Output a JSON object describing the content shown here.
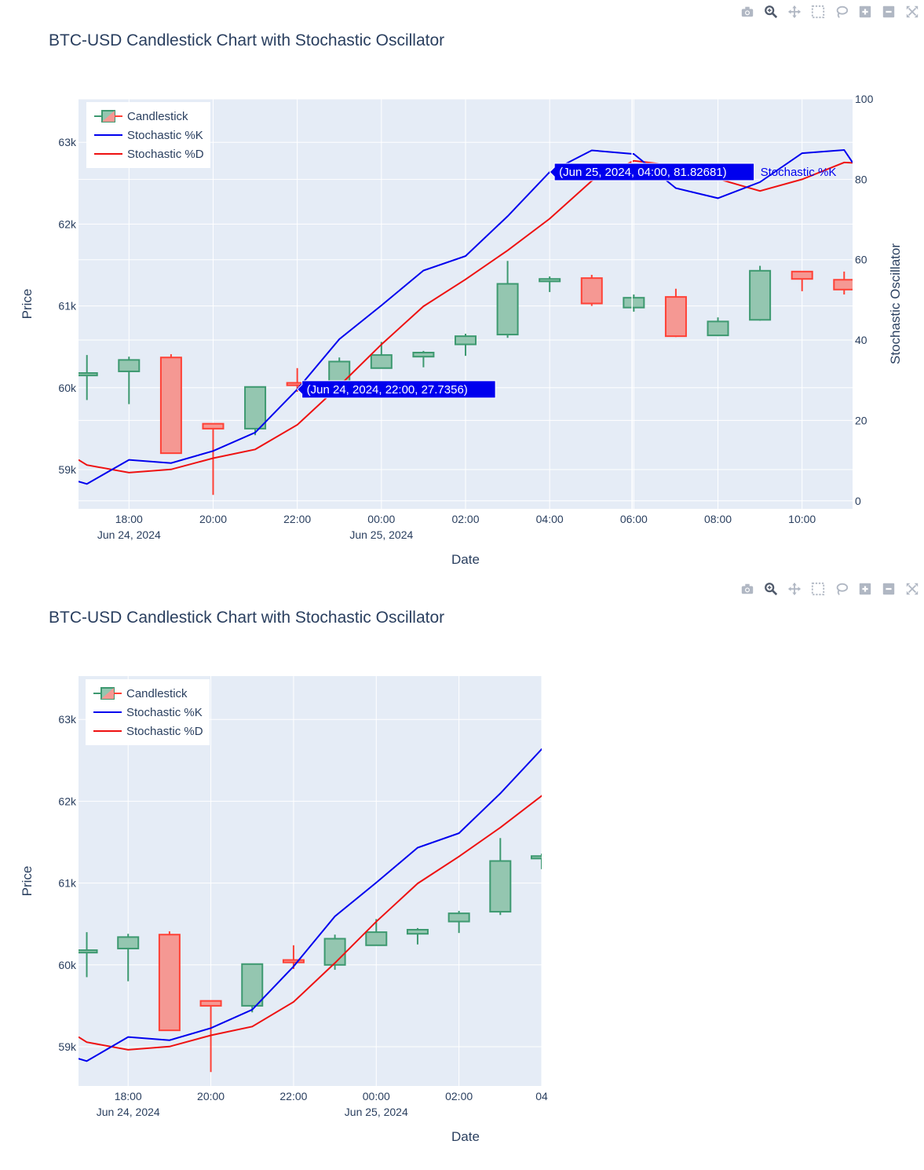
{
  "modebar_icons": [
    "camera-icon",
    "zoom-icon",
    "pan-icon",
    "box-select-icon",
    "lasso-icon",
    "zoom-in-icon",
    "zoom-out-icon",
    "autoscale-icon"
  ],
  "colors": {
    "increasing": "#3d9970",
    "increasing_fill": "#94c6b0",
    "decreasing": "#ff4136",
    "decreasing_fill": "#f59893",
    "k_line": "#0000ee",
    "d_line": "#ee1111",
    "plot_bg": "#e5ecf6",
    "grid": "#ffffff",
    "text": "#2a3f5f"
  },
  "chart_data": [
    {
      "type": "candlestick",
      "title": "BTC-USD Candlestick Chart with Stochastic Oscillator",
      "xlabel": "Date",
      "ylabel": "Price",
      "y2label": "Stochastic Oscillator",
      "legend": [
        "Candlestick",
        "Stochastic %K",
        "Stochastic %D"
      ],
      "legend_position": "top-left",
      "x_range": [
        "2024-06-24 16:48",
        "2024-06-25 11:12"
      ],
      "x_ticks": [
        {
          "t": "2024-06-24 18:00",
          "label": "18:00",
          "date_label": "Jun 24, 2024"
        },
        {
          "t": "2024-06-24 20:00",
          "label": "20:00",
          "date_label": ""
        },
        {
          "t": "2024-06-24 22:00",
          "label": "22:00",
          "date_label": ""
        },
        {
          "t": "2024-06-25 00:00",
          "label": "00:00",
          "date_label": "Jun 25, 2024"
        },
        {
          "t": "2024-06-25 02:00",
          "label": "02:00",
          "date_label": ""
        },
        {
          "t": "2024-06-25 04:00",
          "label": "04:00",
          "date_label": ""
        },
        {
          "t": "2024-06-25 06:00",
          "label": "06:00",
          "date_label": ""
        },
        {
          "t": "2024-06-25 08:00",
          "label": "08:00",
          "date_label": ""
        },
        {
          "t": "2024-06-25 10:00",
          "label": "10:00",
          "date_label": ""
        }
      ],
      "y_range": [
        58520,
        63530
      ],
      "y_ticks": [
        {
          "v": 59000,
          "label": "59k"
        },
        {
          "v": 60000,
          "label": "60k"
        },
        {
          "v": 61000,
          "label": "61k"
        },
        {
          "v": 62000,
          "label": "62k"
        },
        {
          "v": 63000,
          "label": "63k"
        }
      ],
      "y2_range": [
        -2,
        100
      ],
      "y2_ticks": [
        {
          "v": 0,
          "label": "0"
        },
        {
          "v": 20,
          "label": "20"
        },
        {
          "v": 40,
          "label": "40"
        },
        {
          "v": 60,
          "label": "60"
        },
        {
          "v": 80,
          "label": "80"
        },
        {
          "v": 100,
          "label": "100"
        }
      ],
      "candles": [
        {
          "t": "2024-06-24 17:00",
          "open": 60150,
          "high": 60400,
          "low": 59850,
          "close": 60180
        },
        {
          "t": "2024-06-24 18:00",
          "open": 60200,
          "high": 60380,
          "low": 59800,
          "close": 60340
        },
        {
          "t": "2024-06-24 19:00",
          "open": 60370,
          "high": 60410,
          "low": 59200,
          "close": 59200
        },
        {
          "t": "2024-06-24 20:00",
          "open": 59560,
          "high": 59560,
          "low": 58690,
          "close": 59500
        },
        {
          "t": "2024-06-24 21:00",
          "open": 59500,
          "high": 60010,
          "low": 59420,
          "close": 60010
        },
        {
          "t": "2024-06-24 22:00",
          "open": 60060,
          "high": 60240,
          "low": 59950,
          "close": 60030
        },
        {
          "t": "2024-06-24 23:00",
          "open": 60000,
          "high": 60370,
          "low": 59940,
          "close": 60320
        },
        {
          "t": "2024-06-25 00:00",
          "open": 60240,
          "high": 60560,
          "low": 60240,
          "close": 60400
        },
        {
          "t": "2024-06-25 01:00",
          "open": 60380,
          "high": 60450,
          "low": 60250,
          "close": 60430
        },
        {
          "t": "2024-06-25 02:00",
          "open": 60530,
          "high": 60660,
          "low": 60390,
          "close": 60630
        },
        {
          "t": "2024-06-25 03:00",
          "open": 60650,
          "high": 61550,
          "low": 60610,
          "close": 61270
        },
        {
          "t": "2024-06-25 04:00",
          "open": 61300,
          "high": 61360,
          "low": 61170,
          "close": 61330
        },
        {
          "t": "2024-06-25 05:00",
          "open": 61340,
          "high": 61380,
          "low": 61000,
          "close": 61030
        },
        {
          "t": "2024-06-25 06:00",
          "open": 60980,
          "high": 61140,
          "low": 60930,
          "close": 61100
        },
        {
          "t": "2024-06-25 07:00",
          "open": 61110,
          "high": 61210,
          "low": 60620,
          "close": 60630
        },
        {
          "t": "2024-06-25 08:00",
          "open": 60640,
          "high": 60860,
          "low": 60630,
          "close": 60810
        },
        {
          "t": "2024-06-25 09:00",
          "open": 60830,
          "high": 61490,
          "low": 60820,
          "close": 61430
        },
        {
          "t": "2024-06-25 10:00",
          "open": 61420,
          "high": 61420,
          "low": 61180,
          "close": 61330
        },
        {
          "t": "2024-06-25 11:00",
          "open": 61320,
          "high": 61420,
          "low": 61140,
          "close": 61200
        }
      ],
      "stoch_k": {
        "t": [
          "2024-06-24 16:48",
          "2024-06-24 17:00",
          "2024-06-24 18:00",
          "2024-06-24 19:00",
          "2024-06-24 20:00",
          "2024-06-24 21:00",
          "2024-06-24 22:00",
          "2024-06-24 23:00",
          "2024-06-25 00:00",
          "2024-06-25 01:00",
          "2024-06-25 02:00",
          "2024-06-25 03:00",
          "2024-06-25 04:00",
          "2024-06-25 05:00",
          "2024-06-25 06:00",
          "2024-06-25 07:00",
          "2024-06-25 08:00",
          "2024-06-25 09:00",
          "2024-06-25 10:00",
          "2024-06-25 11:00",
          "2024-06-25 11:12"
        ],
        "v": [
          4.8,
          4.2,
          10.2,
          9.4,
          12.4,
          17.0,
          27.7356,
          40.2,
          48.6,
          57.3,
          60.9,
          70.8,
          81.82681,
          87.2,
          86.3,
          77.8,
          75.3,
          79.3,
          86.5,
          87.3,
          84.2
        ]
      },
      "stoch_d": {
        "t": [
          "2024-06-24 16:48",
          "2024-06-24 17:00",
          "2024-06-24 18:00",
          "2024-06-24 19:00",
          "2024-06-24 20:00",
          "2024-06-24 21:00",
          "2024-06-24 22:00",
          "2024-06-24 23:00",
          "2024-06-25 00:00",
          "2024-06-25 01:00",
          "2024-06-25 02:00",
          "2024-06-25 03:00",
          "2024-06-25 04:00",
          "2024-06-25 05:00",
          "2024-06-25 06:00",
          "2024-06-25 07:00",
          "2024-06-25 08:00",
          "2024-06-25 09:00",
          "2024-06-25 10:00",
          "2024-06-25 11:00",
          "2024-06-25 11:12"
        ],
        "v": [
          10.2,
          8.9,
          7.0,
          7.8,
          10.6,
          12.8,
          18.9,
          28.6,
          38.9,
          48.4,
          55.1,
          62.3,
          70.2,
          79.6,
          84.6,
          83.4,
          80.1,
          77.1,
          80.0,
          84.2,
          84.1
        ]
      },
      "hover": [
        {
          "t": "2024-06-24 22:00",
          "v": 27.7356,
          "label": "(Jun 24, 2024, 22:00, 27.7356)",
          "name": ""
        },
        {
          "t": "2024-06-25 04:00",
          "v": 81.82681,
          "label": "(Jun 25, 2024, 04:00, 81.82681)",
          "name": "Stochastic %K"
        }
      ]
    },
    {
      "type": "candlestick",
      "title": "BTC-USD Candlestick Chart with Stochastic Oscillator",
      "xlabel": "Date",
      "ylabel": "Price",
      "legend": [
        "Candlestick",
        "Stochastic %K",
        "Stochastic %D"
      ],
      "legend_position": "top-left",
      "x_range": [
        "2024-06-24 16:48",
        "2024-06-25 04:00"
      ],
      "x_ticks": [
        {
          "t": "2024-06-24 18:00",
          "label": "18:00",
          "date_label": "Jun 24, 2024"
        },
        {
          "t": "2024-06-24 20:00",
          "label": "20:00",
          "date_label": ""
        },
        {
          "t": "2024-06-24 22:00",
          "label": "22:00",
          "date_label": ""
        },
        {
          "t": "2024-06-25 00:00",
          "label": "00:00",
          "date_label": "Jun 25, 2024"
        },
        {
          "t": "2024-06-25 02:00",
          "label": "02:00",
          "date_label": ""
        },
        {
          "t": "2024-06-25 04:00",
          "label": "04",
          "date_label": ""
        }
      ],
      "y_range": [
        58520,
        63530
      ],
      "y_ticks": [
        {
          "v": 59000,
          "label": "59k"
        },
        {
          "v": 60000,
          "label": "60k"
        },
        {
          "v": 61000,
          "label": "61k"
        },
        {
          "v": 62000,
          "label": "62k"
        },
        {
          "v": 63000,
          "label": "63k"
        }
      ],
      "y2_range": [
        -2,
        100
      ],
      "same_data_as": 0
    }
  ]
}
